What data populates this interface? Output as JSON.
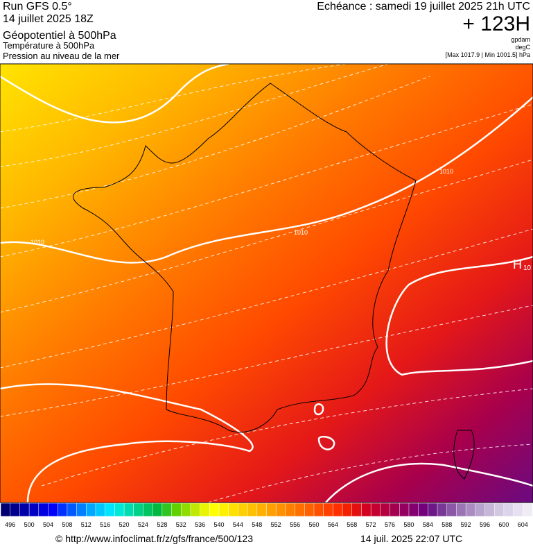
{
  "header": {
    "run": "Run GFS 0.5°",
    "date": "14 juillet 2025 18Z",
    "field1": "Géopotentiel à 500hPa",
    "field2": "Température à 500hPa",
    "field3": "Pression au niveau de la mer",
    "valid": "Echéance : samedi 19 juillet 2025 21h UTC",
    "lead": "+ 123H",
    "unit1": "gpdam",
    "unit2": "degC",
    "range": "[Max 1017.9 | Min 1001.5] hPa"
  },
  "map": {
    "labels": [
      "1010",
      "1010",
      "1010",
      "H",
      "10"
    ]
  },
  "legend": {
    "labels": [
      496,
      500,
      504,
      508,
      512,
      516,
      520,
      524,
      528,
      532,
      536,
      540,
      544,
      548,
      552,
      556,
      560,
      564,
      568,
      572,
      576,
      580,
      584,
      588,
      592,
      596,
      600,
      604
    ],
    "colors": [
      "#000070",
      "#00008c",
      "#0000a8",
      "#0000c4",
      "#0000e0",
      "#0000ff",
      "#0030ff",
      "#0058ff",
      "#0080ff",
      "#00a8ff",
      "#00c8ff",
      "#00e4ff",
      "#00e8d8",
      "#00dcb0",
      "#00d088",
      "#00c460",
      "#00b840",
      "#30c420",
      "#60d000",
      "#90dc00",
      "#c0e800",
      "#e8f400",
      "#ffff00",
      "#fff000",
      "#ffe000",
      "#ffd000",
      "#ffc000",
      "#ffb000",
      "#ffa000",
      "#ff9000",
      "#ff8000",
      "#ff7000",
      "#ff6000",
      "#ff5000",
      "#ff4000",
      "#ff3000",
      "#f42000",
      "#e41010",
      "#d40020",
      "#c40030",
      "#b40040",
      "#a40050",
      "#940060",
      "#840070",
      "#74007c",
      "#6c1888",
      "#7a3896",
      "#8a58a6",
      "#9a74b4",
      "#aa8cc2",
      "#b8a2ce",
      "#c6b6d8",
      "#d2c8e2",
      "#dcd4ea",
      "#e6e0f0",
      "#f0ecf6"
    ]
  },
  "footer": {
    "source": "© http://www.infoclimat.fr/z/gfs/france/500/123",
    "timestamp": "14 juil. 2025 22:07 UTC"
  }
}
